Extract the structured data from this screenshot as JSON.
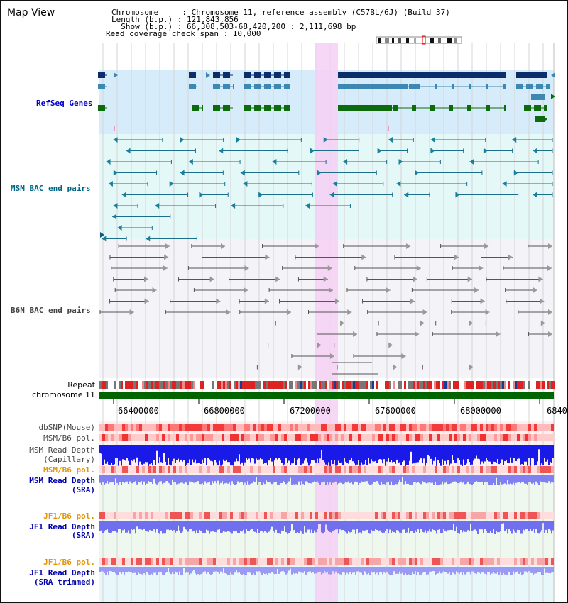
{
  "page_title": "Map View",
  "info": {
    "line1": "Chromosome     : Chromosome 11, reference assembly (C57BL/6J) (Build 37)",
    "line2": "Length (b.p.) : 121,843,856",
    "line3": "  Show (b.p.) : 66,308,503-68,420,200 : 2,111,698 bp",
    "line4": "Read coverage check span : 10,000"
  },
  "tracks": {
    "refseq": "RefSeq Genes",
    "msm_bac": "MSM BAC end pairs",
    "b6n_bac": "B6N BAC end pairs",
    "repeat": "Repeat",
    "chromosome": "chromosome 11",
    "dbsnp": "dbSNP(Mouse)",
    "msm_b6_pol_1": "MSM/B6 pol.",
    "msm_depth_cap_1": "MSM Read Depth",
    "msm_depth_cap_2": "(Capillary)",
    "msm_b6_pol_2": "MSM/B6 pol.",
    "msm_depth_sra_1": "MSM Read Depth",
    "msm_depth_sra_2": "(SRA)",
    "jf1_b6_pol_1": "JF1/B6 pol.",
    "jf1_depth_sra_1": "JF1 Read Depth",
    "jf1_depth_sra_2": "(SRA)",
    "jf1_b6_pol_2": "JF1/B6 pol.",
    "jf1_depth_trim_1": "JF1 Read Depth",
    "jf1_depth_trim_2": "(SRA trimmed)"
  },
  "axis_ticks": [
    "66400000",
    "66800000",
    "67200000",
    "67600000",
    "68000000",
    "6840"
  ],
  "colors": {
    "refseq_label": "#0000cc",
    "msm_bac_label": "#006688",
    "b6n_bac_label": "#444444",
    "orange_label": "#e69500",
    "blue_label": "#0000aa",
    "highlight": "#f6d0f4",
    "chromosome_bar": "#006400",
    "gene_dark": "#0b2d6b",
    "gene_mid": "#3d87b3",
    "gene_green": "#0d6a0d"
  }
}
